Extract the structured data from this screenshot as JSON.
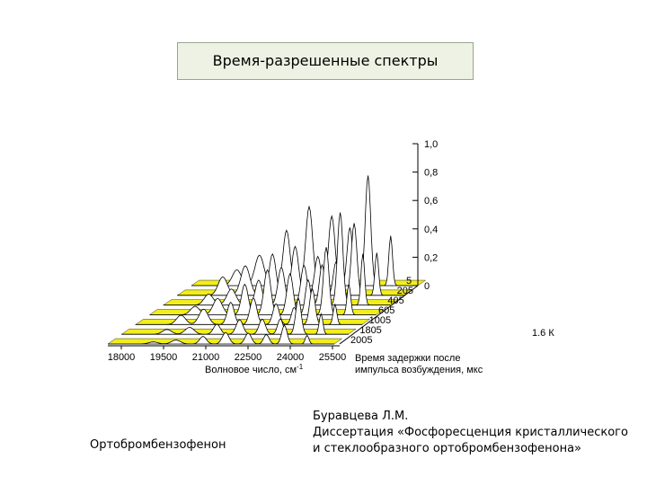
{
  "header": {
    "title": "Время-разрешенные спектры"
  },
  "figure": {
    "x_ticks": [
      "18000",
      "19500",
      "21000",
      "22500",
      "24000",
      "25500"
    ],
    "x_label": "Волновое число, см",
    "x_label_sup": "-1",
    "intensity_ticks": [
      "1,0",
      "0,8",
      "0,6",
      "0,4",
      "0,2",
      "0"
    ],
    "delay_ticks": [
      "5",
      "205",
      "405",
      "605",
      "1005",
      "1805",
      "2005"
    ],
    "delay_label": [
      "Время задержки после",
      "импульса возбуждения, мкс"
    ],
    "temperature": "1.6 К"
  },
  "caption": {
    "compound": "Ортобромбензофенон",
    "source": [
      "Буравцева Л.М.",
      "Диссертация «Фосфоресценция кристаллического",
      "и стеклообразного ортобромбензофенона»"
    ]
  }
}
